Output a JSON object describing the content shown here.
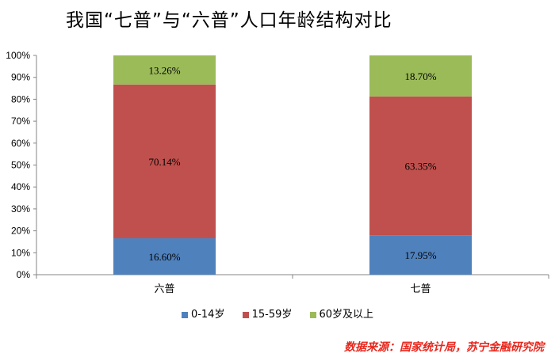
{
  "chart_data": {
    "type": "bar",
    "stacked": true,
    "title": "我国“七普”与“六普”人口年龄结构对比",
    "categories": [
      "六普",
      "七普"
    ],
    "series": [
      {
        "name": "0-14岁",
        "color": "#4f81bd",
        "values": [
          16.6,
          17.95
        ],
        "labels": [
          "16.60%",
          "17.95%"
        ]
      },
      {
        "name": "15-59岁",
        "color": "#c0504d",
        "values": [
          70.14,
          63.35
        ],
        "labels": [
          "70.14%",
          "63.35%"
        ]
      },
      {
        "name": "60岁及以上",
        "color": "#9bbb59",
        "values": [
          13.26,
          18.7
        ],
        "labels": [
          "13.26%",
          "18.70%"
        ]
      }
    ],
    "ylim": [
      0,
      100
    ],
    "yticks": [
      "0%",
      "10%",
      "20%",
      "30%",
      "40%",
      "50%",
      "60%",
      "70%",
      "80%",
      "90%",
      "100%"
    ],
    "grid": false,
    "legend_position": "bottom"
  },
  "source": "数据来源：国家统计局，苏宁金融研究院"
}
